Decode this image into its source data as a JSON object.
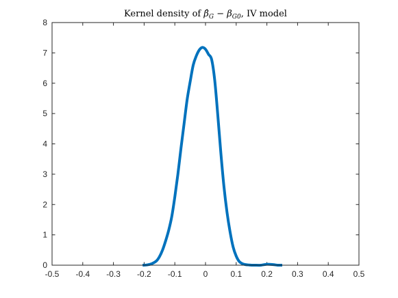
{
  "chart_data": {
    "type": "line",
    "title": {
      "prefix": "Kernel density of ",
      "beta_hat": "β̂",
      "sub_g": "G",
      "minus": " − ",
      "beta": "β",
      "sub_g0": "G0",
      "suffix": ", IV model"
    },
    "xlabel": "",
    "ylabel": "",
    "xlim": [
      -0.5,
      0.5
    ],
    "ylim": [
      0,
      8
    ],
    "x_ticks": [
      "-0.5",
      "-0.4",
      "-0.3",
      "-0.2",
      "-0.1",
      "0",
      "0.1",
      "0.2",
      "0.3",
      "0.4",
      "0.5"
    ],
    "x_tick_values": [
      -0.5,
      -0.4,
      -0.3,
      -0.2,
      -0.1,
      0,
      0.1,
      0.2,
      0.3,
      0.4,
      0.5
    ],
    "y_ticks": [
      "0",
      "1",
      "2",
      "3",
      "4",
      "5",
      "6",
      "7",
      "8"
    ],
    "y_tick_values": [
      0,
      1,
      2,
      3,
      4,
      5,
      6,
      7,
      8
    ],
    "grid": false,
    "box": true,
    "series": [
      {
        "color": "#0072BD",
        "x": [
          -0.205,
          -0.19,
          -0.175,
          -0.16,
          -0.15,
          -0.14,
          -0.13,
          -0.12,
          -0.11,
          -0.1,
          -0.09,
          -0.08,
          -0.07,
          -0.06,
          -0.05,
          -0.04,
          -0.03,
          -0.02,
          -0.01,
          0.0,
          0.01,
          0.02,
          0.03,
          0.04,
          0.05,
          0.06,
          0.07,
          0.08,
          0.09,
          0.1,
          0.11,
          0.12,
          0.13,
          0.14,
          0.15,
          0.16,
          0.18,
          0.2,
          0.22,
          0.235,
          0.25
        ],
        "y": [
          0.0,
          0.01,
          0.05,
          0.14,
          0.28,
          0.5,
          0.8,
          1.15,
          1.6,
          2.25,
          3.0,
          3.85,
          4.65,
          5.45,
          6.05,
          6.6,
          6.9,
          7.1,
          7.18,
          7.12,
          6.95,
          6.78,
          6.1,
          4.95,
          3.7,
          2.6,
          1.75,
          1.1,
          0.6,
          0.3,
          0.12,
          0.05,
          0.02,
          0.01,
          0.0,
          0.0,
          0.0,
          0.03,
          0.02,
          0.0,
          0.0
        ]
      }
    ]
  }
}
